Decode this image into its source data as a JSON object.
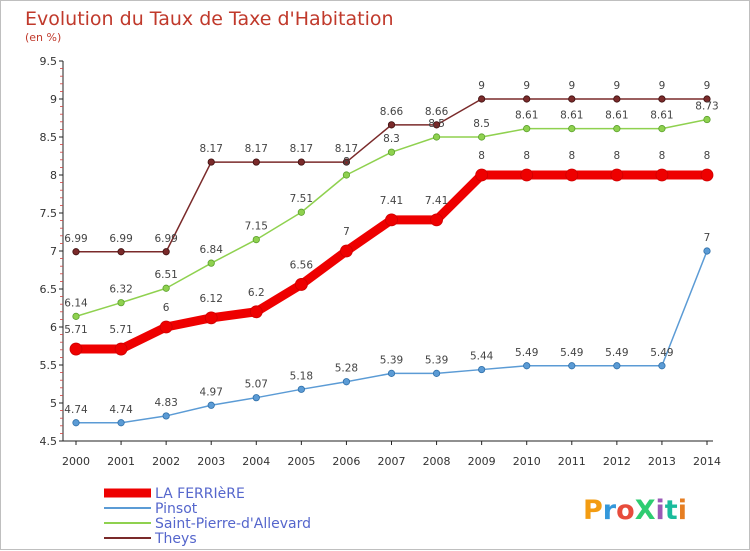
{
  "chart_data": {
    "type": "line",
    "title": "Evolution du Taux de Taxe d'Habitation",
    "subtitle": "(en %)",
    "x": [
      "2000",
      "2001",
      "2002",
      "2003",
      "2004",
      "2005",
      "2006",
      "2007",
      "2008",
      "2009",
      "2010",
      "2011",
      "2012",
      "2013",
      "2014"
    ],
    "ylim": [
      4.5,
      9.5
    ],
    "yticks": [
      "4.5",
      "5",
      "5.5",
      "6",
      "6.5",
      "7",
      "7.5",
      "8",
      "8.5",
      "9",
      "9.5"
    ],
    "grid": false,
    "legend_position": "bottom-left",
    "series": [
      {
        "name": "LA FERRIèRE",
        "color": "#ee0000",
        "values": [
          5.71,
          5.71,
          6,
          6.12,
          6.2,
          6.56,
          7,
          7.41,
          7.41,
          8,
          8,
          8,
          8,
          8,
          8
        ],
        "labels": [
          "5.71",
          "5.71",
          "6",
          "6.12",
          "6.2",
          "6.56",
          "7",
          "7.41",
          "7.41",
          "8",
          "8",
          "8",
          "8",
          "8",
          "8"
        ]
      },
      {
        "name": "Pinsot",
        "color": "#5b9bd5",
        "values": [
          4.74,
          4.74,
          4.83,
          4.97,
          5.07,
          5.18,
          5.28,
          5.39,
          5.39,
          5.44,
          5.49,
          5.49,
          5.49,
          5.49,
          7
        ],
        "labels": [
          "4.74",
          "4.74",
          "4.83",
          "4.97",
          "5.07",
          "5.18",
          "5.28",
          "5.39",
          "5.39",
          "5.44",
          "5.49",
          "5.49",
          "5.49",
          "5.49",
          "7"
        ]
      },
      {
        "name": "Saint-Pierre-d'Allevard",
        "color": "#8fd14f",
        "values": [
          6.14,
          6.32,
          6.51,
          6.84,
          7.15,
          7.51,
          8,
          8.3,
          8.5,
          8.5,
          8.61,
          8.61,
          8.61,
          8.61,
          8.73
        ],
        "labels": [
          "6.14",
          "6.32",
          "6.51",
          "6.84",
          "7.15",
          "7.51",
          "8",
          "8.3",
          "8.5",
          "8.5",
          "8.61",
          "8.61",
          "8.61",
          "8.61",
          "8.73"
        ]
      },
      {
        "name": "Theys",
        "color": "#7a2a2a",
        "values": [
          6.99,
          6.99,
          6.99,
          8.17,
          8.17,
          8.17,
          8.17,
          8.66,
          8.66,
          9,
          9,
          9,
          9,
          9,
          9
        ],
        "labels": [
          "6.99",
          "6.99",
          "6.99",
          "8.17",
          "8.17",
          "8.17",
          "8.17",
          "8.66",
          "8.66",
          "9",
          "9",
          "9",
          "9",
          "9",
          "9"
        ]
      }
    ]
  },
  "logo": {
    "text": "ProXiti",
    "colors": [
      "#f39c12",
      "#3498db",
      "#e74c3c",
      "#2ecc71",
      "#9b59b6",
      "#1abc9c",
      "#e67e22"
    ]
  }
}
